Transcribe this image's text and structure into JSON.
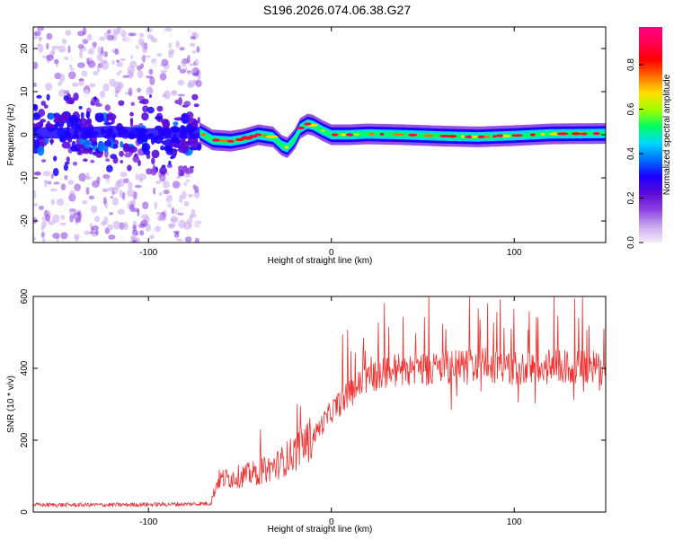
{
  "title": "S196.2026.074.06.38.G27",
  "chart_data": [
    {
      "type": "heatmap",
      "title": "S196.2026.074.06.38.G27",
      "xlabel": "Height of straight line (km)",
      "ylabel": "Frequency (Hz)",
      "xlim": [
        -163,
        150
      ],
      "ylim": [
        -25,
        25
      ],
      "xticks": [
        -100,
        0,
        100
      ],
      "xtick_labels": [
        "-100",
        "0",
        "100"
      ],
      "yticks": [
        -20,
        -10,
        0,
        10,
        20
      ],
      "ytick_labels": [
        "-20",
        "-10",
        "0",
        "10",
        "20"
      ],
      "colorbar": {
        "label": "Normalized spectral amplitude",
        "range": [
          0,
          0.97
        ],
        "ticks": [
          0.0,
          0.2,
          0.4,
          0.6,
          0.8
        ],
        "tick_labels": [
          "0.0",
          "0.2",
          "0.4",
          "0.6",
          "0.8"
        ],
        "colors": [
          "#f4ecfb",
          "#c9a6ee",
          "#8a3fe0",
          "#5a0ad8",
          "#1a00ff",
          "#0070ff",
          "#00d8ff",
          "#00ff60",
          "#a0ff00",
          "#ffe000",
          "#ff7000",
          "#ff0000",
          "#ff0050",
          "#ff0080"
        ]
      },
      "ridge": {
        "x": [
          -163,
          -140,
          -120,
          -100,
          -72,
          -65,
          -55,
          -48,
          -40,
          -32,
          -27,
          -24,
          -20,
          -17,
          -13,
          -10,
          -5,
          0,
          10,
          20,
          40,
          60,
          80,
          100,
          120,
          150
        ],
        "y": [
          0.5,
          0.3,
          0.8,
          0.2,
          0.5,
          -1.2,
          -1.5,
          -1,
          0,
          -0.5,
          -2.5,
          -3,
          -1,
          1.5,
          2.5,
          2.2,
          1,
          0,
          0,
          0.2,
          0,
          -0.3,
          -0.5,
          -0.2,
          0.2,
          0.3
        ]
      },
      "noise_region_x": [
        -163,
        -72
      ]
    },
    {
      "type": "line",
      "xlabel": "Height of straight line (km)",
      "ylabel": "SNR (10 * v/v)",
      "xlim": [
        -163,
        150
      ],
      "ylim": [
        0,
        600
      ],
      "xticks": [
        -100,
        0,
        100
      ],
      "xtick_labels": [
        "-100",
        "0",
        "100"
      ],
      "yticks": [
        0,
        200,
        400,
        600
      ],
      "ytick_labels": [
        "0",
        "200",
        "400",
        "600"
      ],
      "color": "#ee3030",
      "envelope": {
        "x": [
          -163,
          -120,
          -80,
          -66,
          -62,
          -50,
          -40,
          -30,
          -20,
          -10,
          0,
          10,
          20,
          30,
          40,
          60,
          80,
          100,
          120,
          150
        ],
        "y": [
          20,
          20,
          22,
          24,
          90,
          100,
          110,
          130,
          165,
          210,
          280,
          330,
          375,
          390,
          400,
          400,
          410,
          400,
          405,
          400
        ]
      }
    }
  ]
}
